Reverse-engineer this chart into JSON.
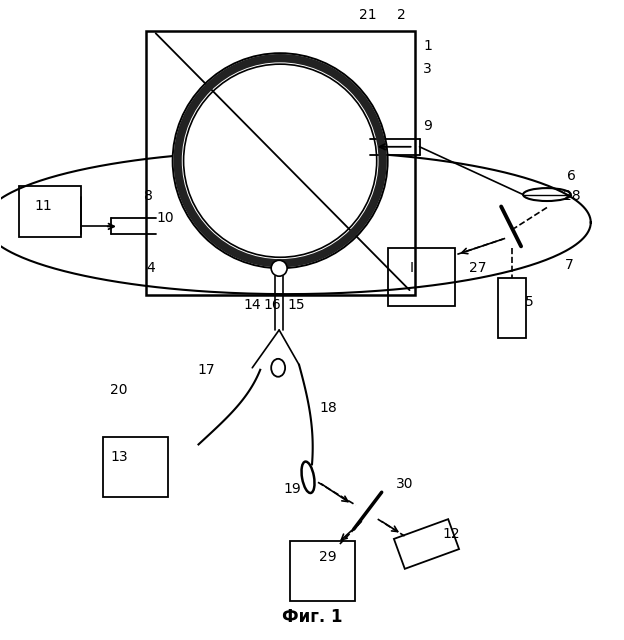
{
  "title": "Фиг. 1",
  "bg": "#ffffff",
  "lc": "#000000",
  "fig_w": 6.24,
  "fig_h": 6.4,
  "dpi": 100
}
